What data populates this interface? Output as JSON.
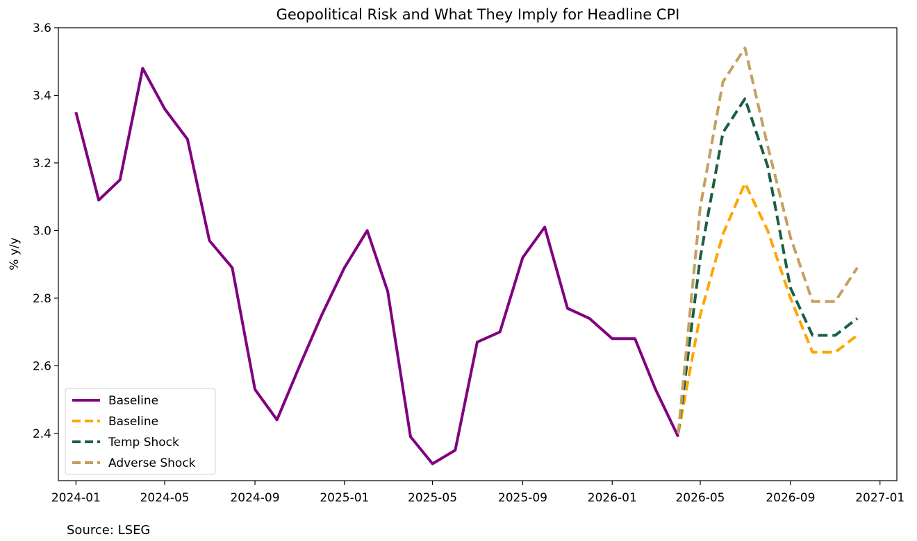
{
  "chart_data": {
    "type": "line",
    "title": "Geopolitical Risk and What They Imply for Headline CPI",
    "xlabel": "",
    "ylabel": "% y/y",
    "ylim": [
      2.26,
      3.6
    ],
    "xlim": [
      "2023-12-08",
      "2027-01-24"
    ],
    "yticks": [
      2.4,
      2.6,
      2.8,
      3.0,
      3.2,
      3.4,
      3.6
    ],
    "ytick_labels": [
      "2.4",
      "2.6",
      "2.8",
      "3.0",
      "3.2",
      "3.4",
      "3.6"
    ],
    "xticks": [
      "2024-01-01",
      "2024-05-01",
      "2024-09-01",
      "2025-01-01",
      "2025-05-01",
      "2025-09-01",
      "2026-01-01",
      "2026-05-01",
      "2026-09-01",
      "2027-01-01"
    ],
    "xtick_labels": [
      "2024-01",
      "2024-05",
      "2024-09",
      "2025-01",
      "2025-05",
      "2025-09",
      "2026-01",
      "2026-05",
      "2026-09",
      "2027-01"
    ],
    "grid": false,
    "legend_position": "lower-left",
    "series": [
      {
        "name": "Baseline",
        "color": "#800080",
        "style": "solid",
        "x": [
          "2024-01-01",
          "2024-02-01",
          "2024-03-01",
          "2024-04-01",
          "2024-05-01",
          "2024-06-01",
          "2024-07-01",
          "2024-08-01",
          "2024-09-01",
          "2024-10-01",
          "2024-11-01",
          "2024-12-01",
          "2025-01-01",
          "2025-02-01",
          "2025-03-01",
          "2025-04-01",
          "2025-05-01",
          "2025-06-01",
          "2025-07-01",
          "2025-08-01",
          "2025-09-01",
          "2025-10-01",
          "2025-11-01",
          "2025-12-01",
          "2026-01-01",
          "2026-02-01",
          "2026-03-01",
          "2026-04-01"
        ],
        "values": [
          3.35,
          3.09,
          3.15,
          3.48,
          3.36,
          3.27,
          2.97,
          2.89,
          2.53,
          2.44,
          2.6,
          2.75,
          2.89,
          3.0,
          2.82,
          2.39,
          2.31,
          2.35,
          2.67,
          2.7,
          2.92,
          3.01,
          2.77,
          2.74,
          2.68,
          2.68,
          2.53,
          2.39
        ]
      },
      {
        "name": "Baseline",
        "color": "#FFA500",
        "style": "dashed",
        "x": [
          "2026-04-01",
          "2026-05-01",
          "2026-06-01",
          "2026-07-01",
          "2026-08-01",
          "2026-09-01",
          "2026-10-01",
          "2026-11-01",
          "2026-12-01"
        ],
        "values": [
          2.4,
          2.75,
          2.99,
          3.14,
          3.0,
          2.8,
          2.64,
          2.64,
          2.69
        ]
      },
      {
        "name": "Temp Shock",
        "color": "#1B5E45",
        "style": "dashed",
        "x": [
          "2026-04-01",
          "2026-05-01",
          "2026-06-01",
          "2026-07-01",
          "2026-08-01",
          "2026-09-01",
          "2026-10-01",
          "2026-11-01",
          "2026-12-01"
        ],
        "values": [
          2.4,
          2.92,
          3.29,
          3.39,
          3.19,
          2.83,
          2.69,
          2.69,
          2.74
        ]
      },
      {
        "name": "Adverse Shock",
        "color": "#C4A062",
        "style": "dashed",
        "x": [
          "2026-04-01",
          "2026-05-01",
          "2026-06-01",
          "2026-07-01",
          "2026-08-01",
          "2026-09-01",
          "2026-10-01",
          "2026-11-01",
          "2026-12-01"
        ],
        "values": [
          2.4,
          3.07,
          3.44,
          3.54,
          3.25,
          2.98,
          2.79,
          2.79,
          2.89
        ]
      }
    ]
  },
  "source": "Source: LSEG"
}
